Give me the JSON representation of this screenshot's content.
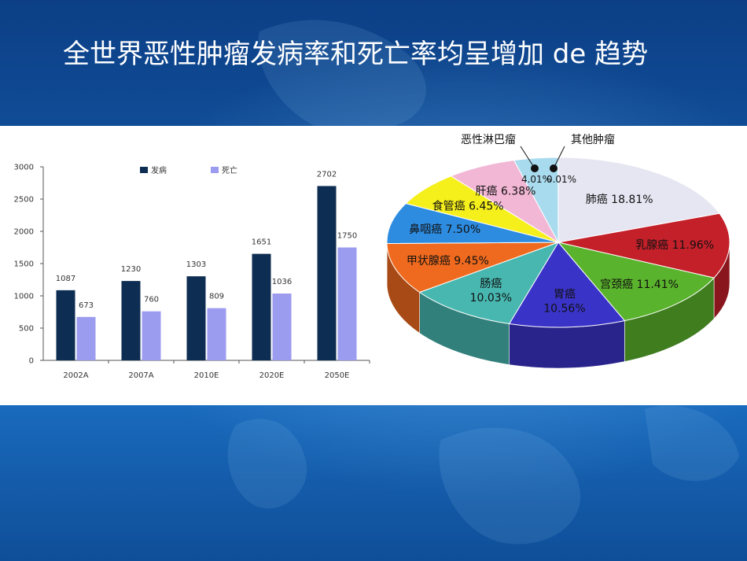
{
  "title": "全世界恶性肿瘤发病率和死亡率均呈增加 de 趋势",
  "chart_data": [
    {
      "type": "bar",
      "categories": [
        "2002A",
        "2007A",
        "2010E",
        "2020E",
        "2050E"
      ],
      "series": [
        {
          "name": "发病",
          "values": [
            1087,
            1230,
            1303,
            1651,
            2702
          ],
          "color": "#0d2d52"
        },
        {
          "name": "死亡",
          "values": [
            673,
            760,
            809,
            1036,
            1750
          ],
          "color": "#9b9bef"
        }
      ],
      "yticks": [
        0,
        500,
        1000,
        1500,
        2000,
        2500,
        3000
      ],
      "ylim": [
        0,
        3000
      ],
      "legend": "top",
      "grid": false
    },
    {
      "type": "pie",
      "style": "3d",
      "slices": [
        {
          "label": "肺癌",
          "pct": "18.81%",
          "value": 18.81,
          "color": "#e6e6f3"
        },
        {
          "label": "乳腺癌",
          "pct": "11.96%",
          "value": 11.96,
          "color": "#c4202a"
        },
        {
          "label": "宫颈癌",
          "pct": "11.41%",
          "value": 11.41,
          "color": "#5ab32c"
        },
        {
          "label": "胃癌",
          "pct": "10.56%",
          "value": 10.56,
          "color": "#3a33c8"
        },
        {
          "label": "肠癌",
          "pct": "10.03%",
          "value": 10.03,
          "color": "#47b7b0"
        },
        {
          "label": "甲状腺癌",
          "pct": "9.45%",
          "value": 9.45,
          "color": "#ef6a1e"
        },
        {
          "label": "鼻咽癌",
          "pct": "7.50%",
          "value": 7.5,
          "color": "#2d8be0"
        },
        {
          "label": "食管癌",
          "pct": "6.45%",
          "value": 6.45,
          "color": "#f5ef1c"
        },
        {
          "label": "肝癌",
          "pct": "6.38%",
          "value": 6.38,
          "color": "#f3b7d6"
        },
        {
          "label": "恶性淋巴瘤",
          "pct": "4.01%",
          "value": 4.01,
          "color": "#a9dbee"
        },
        {
          "label": "其他肿瘤",
          "pct": "0.01%",
          "value": 0.01,
          "color": "#c9c9c9"
        }
      ]
    }
  ]
}
